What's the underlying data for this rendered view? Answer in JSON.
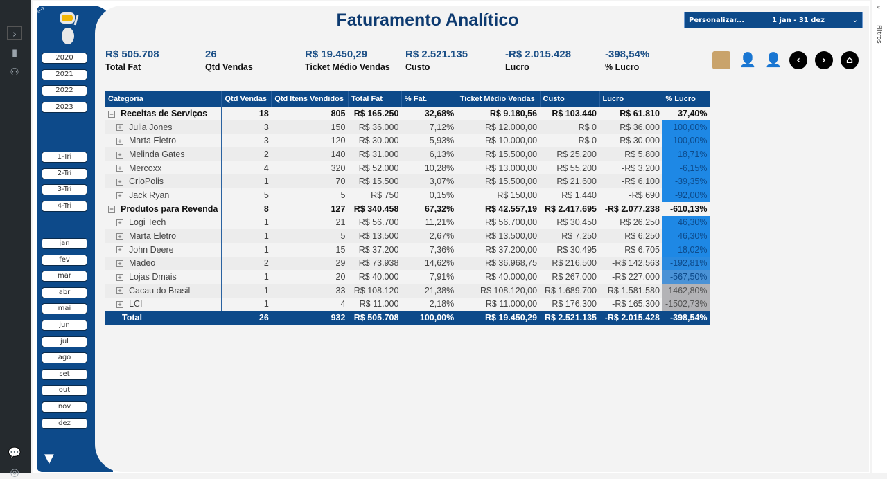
{
  "title": "Faturamento Analítico",
  "date_filter": {
    "label": "Personalizar...",
    "value": "1 jan - 31 dez"
  },
  "filters_pane": {
    "label": "Filtros"
  },
  "years": [
    "2020",
    "2021",
    "2022",
    "2023"
  ],
  "quarters": [
    "1-Tri",
    "2-Tri",
    "3-Tri",
    "4-Tri"
  ],
  "months": [
    "jan",
    "fev",
    "mar",
    "abr",
    "mai",
    "jun",
    "jul",
    "ago",
    "set",
    "out",
    "nov",
    "dez"
  ],
  "kpis": [
    {
      "value": "R$ 505.708",
      "label": "Total Fat"
    },
    {
      "value": "26",
      "label": "Qtd Vendas"
    },
    {
      "value": "R$ 19.450,29",
      "label": "Ticket Médio Vendas"
    },
    {
      "value": "R$ 2.521.135",
      "label": "Custo"
    },
    {
      "value": "-R$ 2.015.428",
      "label": "Lucro"
    },
    {
      "value": "-398,54%",
      "label": "% Lucro"
    }
  ],
  "nav_icons": [
    "boxes-icon",
    "client-icon",
    "seller-icon",
    "back-icon",
    "forward-icon",
    "home-icon"
  ],
  "table": {
    "headers": [
      "Categoria",
      "Qtd Vendas",
      "Qtd Itens Vendidos",
      "Total Fat",
      "% Fat.",
      "Ticket Médio Vendas",
      "Custo",
      "Lucro",
      "% Lucro"
    ],
    "sort_column": "% Lucro",
    "rows": [
      {
        "type": "cat",
        "cells": [
          "Receitas de Serviços",
          "18",
          "805",
          "R$ 165.250",
          "32,68%",
          "R$ 9.180,56",
          "R$ 103.440",
          "R$ 61.810",
          "37,40%"
        ]
      },
      {
        "type": "sub",
        "cells": [
          "Julia Jones",
          "3",
          "150",
          "R$ 36.000",
          "7,12%",
          "R$ 12.000,00",
          "R$ 0",
          "R$ 36.000",
          "100,00%"
        ],
        "color": "#1e88e5"
      },
      {
        "type": "sub",
        "cells": [
          "Marta Eletro",
          "3",
          "120",
          "R$ 30.000",
          "5,93%",
          "R$ 10.000,00",
          "R$ 0",
          "R$ 30.000",
          "100,00%"
        ],
        "color": "#1e88e5"
      },
      {
        "type": "sub",
        "cells": [
          "Melinda Gates",
          "2",
          "140",
          "R$ 31.000",
          "6,13%",
          "R$ 15.500,00",
          "R$ 25.200",
          "R$ 5.800",
          "18,71%"
        ],
        "color": "#1e88e5"
      },
      {
        "type": "sub",
        "cells": [
          "Mercoxx",
          "4",
          "320",
          "R$ 52.000",
          "10,28%",
          "R$ 13.000,00",
          "R$ 55.200",
          "-R$ 3.200",
          "-6,15%"
        ],
        "color": "#1e88e5"
      },
      {
        "type": "sub",
        "cells": [
          "CrioPolis",
          "1",
          "70",
          "R$ 15.500",
          "3,07%",
          "R$ 15.500,00",
          "R$ 21.600",
          "-R$ 6.100",
          "-39,35%"
        ],
        "color": "#1e88e5"
      },
      {
        "type": "sub",
        "cells": [
          "Jack Ryan",
          "5",
          "5",
          "R$ 750",
          "0,15%",
          "R$ 150,00",
          "R$ 1.440",
          "-R$ 690",
          "-92,00%"
        ],
        "color": "#1e88e5"
      },
      {
        "type": "cat",
        "cells": [
          "Produtos para Revenda",
          "8",
          "127",
          "R$ 340.458",
          "67,32%",
          "R$ 42.557,19",
          "R$ 2.417.695",
          "-R$ 2.077.238",
          "-610,13%"
        ]
      },
      {
        "type": "sub",
        "cells": [
          "Logi Tech",
          "1",
          "21",
          "R$ 56.700",
          "11,21%",
          "R$ 56.700,00",
          "R$ 30.450",
          "R$ 26.250",
          "46,30%"
        ],
        "color": "#1e88e5"
      },
      {
        "type": "sub",
        "cells": [
          "Marta Eletro",
          "1",
          "5",
          "R$ 13.500",
          "2,67%",
          "R$ 13.500,00",
          "R$ 7.250",
          "R$ 6.250",
          "46,30%"
        ],
        "color": "#1e88e5"
      },
      {
        "type": "sub",
        "cells": [
          "John Deere",
          "1",
          "15",
          "R$ 37.200",
          "7,36%",
          "R$ 37.200,00",
          "R$ 30.495",
          "R$ 6.705",
          "18,02%"
        ],
        "color": "#1e88e5"
      },
      {
        "type": "sub",
        "cells": [
          "Madeo",
          "2",
          "29",
          "R$ 73.938",
          "14,62%",
          "R$ 36.968,75",
          "R$ 216.500",
          "-R$ 142.563",
          "-192,81%"
        ],
        "color": "#2a8ae0"
      },
      {
        "type": "sub",
        "cells": [
          "Lojas Dmais",
          "1",
          "20",
          "R$ 40.000",
          "7,91%",
          "R$ 40.000,00",
          "R$ 267.000",
          "-R$ 227.000",
          "-567,50%"
        ],
        "color": "#4a92d6"
      },
      {
        "type": "sub",
        "cells": [
          "Cacau do Brasil",
          "1",
          "33",
          "R$ 108.120",
          "21,38%",
          "R$ 108.120,00",
          "R$ 1.689.700",
          "-R$ 1.581.580",
          "-1462,80%"
        ],
        "color": "#b3b3b6"
      },
      {
        "type": "sub",
        "cells": [
          "LCI",
          "1",
          "4",
          "R$ 11.000",
          "2,18%",
          "R$ 11.000,00",
          "R$ 176.300",
          "-R$ 165.300",
          "-1502,73%"
        ],
        "color": "#b3b3b6"
      }
    ],
    "total": [
      "Total",
      "26",
      "932",
      "R$ 505.708",
      "100,00%",
      "R$ 19.450,29",
      "R$ 2.521.135",
      "-R$ 2.015.428",
      "-398,54%"
    ]
  }
}
